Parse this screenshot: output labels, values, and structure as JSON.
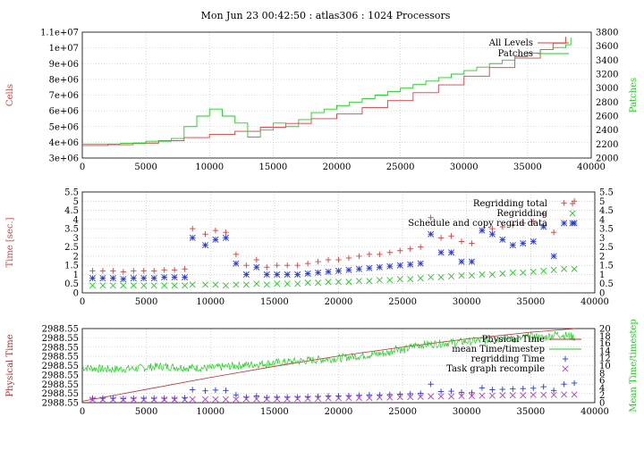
{
  "title": "Mon Jun 23 00:42:50 : atlas306 : 1024 Processors",
  "colors": {
    "red": "#d04040",
    "green": "#22cc22",
    "blue": "#2a3acc",
    "magenta": "#b040c0",
    "darkred": "#b03030"
  },
  "chart_data": [
    {
      "type": "line",
      "xlim": [
        0,
        40000
      ],
      "ylim_left": [
        3000000,
        11000000
      ],
      "ylim_right": [
        2000,
        3800
      ],
      "ylabel": "Cells",
      "ylabel_right": "Patches",
      "x_ticks": [
        "0",
        "5000",
        "10000",
        "15000",
        "20000",
        "25000",
        "30000",
        "35000",
        "40000"
      ],
      "y_ticks": [
        "3e+06",
        "4e+06",
        "5e+06",
        "6e+06",
        "7e+06",
        "8e+06",
        "9e+06",
        "1e+07",
        "1.1e+07"
      ],
      "y_ticks_right": [
        "2000",
        "2200",
        "2400",
        "2600",
        "2800",
        "3000",
        "3200",
        "3400",
        "3600",
        "3800"
      ],
      "legend_placement": "top-right",
      "series": [
        {
          "name": "All Levels",
          "axis": "left",
          "x": [
            0,
            2000,
            4000,
            6000,
            8000,
            10000,
            12000,
            14000,
            16000,
            18000,
            20000,
            22000,
            24000,
            26000,
            28000,
            30000,
            32000,
            34000,
            36000,
            37000,
            38000
          ],
          "y": [
            3800000,
            3850000,
            3950000,
            4100000,
            4300000,
            4500000,
            4700000,
            4950000,
            5200000,
            5500000,
            5800000,
            6200000,
            6650000,
            7150000,
            7650000,
            8200000,
            8750000,
            9350000,
            9900000,
            10300000,
            10700000
          ]
        },
        {
          "name": "Patches",
          "axis": "right",
          "x": [
            0,
            3000,
            5000,
            7000,
            8000,
            9000,
            10000,
            11000,
            12000,
            13000,
            14000,
            15000,
            16000,
            17000,
            18000,
            19000,
            20000,
            21000,
            22000,
            23000,
            24000,
            25000,
            26000,
            27000,
            28000,
            29000,
            30000,
            31000,
            32000,
            33000,
            34000,
            35000,
            36000,
            37000,
            38000,
            38400
          ],
          "y": [
            2200,
            2210,
            2240,
            2280,
            2450,
            2600,
            2700,
            2600,
            2500,
            2300,
            2400,
            2500,
            2450,
            2550,
            2650,
            2700,
            2750,
            2800,
            2850,
            2900,
            2950,
            3000,
            3050,
            3100,
            3150,
            3200,
            3250,
            3300,
            3350,
            3400,
            3450,
            3500,
            3550,
            3580,
            3620,
            3720
          ]
        }
      ]
    },
    {
      "type": "scatter",
      "xlim": [
        0,
        40000
      ],
      "ylim": [
        0,
        5.5
      ],
      "ylabel": "Time [sec.]",
      "x_ticks": [
        "0",
        "5000",
        "10000",
        "15000",
        "20000",
        "25000",
        "30000",
        "35000",
        "40000"
      ],
      "y_ticks": [
        "0",
        "0.5",
        "1",
        "1.5",
        "2",
        "2.5",
        "3",
        "3.5",
        "4",
        "4.5",
        "5",
        "5.5"
      ],
      "legend_placement": "top-right",
      "series": [
        {
          "name": "Regridding total",
          "marker": "+",
          "x": [
            800,
            1600,
            2400,
            3200,
            4000,
            4800,
            5600,
            6400,
            7200,
            8000,
            8600,
            9600,
            10400,
            11200,
            12000,
            12800,
            13600,
            14400,
            15200,
            16000,
            16800,
            17600,
            18400,
            19200,
            20000,
            20800,
            21600,
            22400,
            23200,
            24000,
            24800,
            25600,
            26400,
            27200,
            28000,
            28800,
            29600,
            30400,
            31200,
            32000,
            32800,
            33600,
            34400,
            35200,
            36000,
            36800,
            37600,
            38400
          ],
          "y": [
            1.2,
            1.2,
            1.2,
            1.15,
            1.2,
            1.2,
            1.2,
            1.25,
            1.25,
            1.3,
            3.5,
            3.2,
            3.4,
            3.3,
            2.1,
            1.5,
            1.8,
            1.4,
            1.5,
            1.5,
            1.5,
            1.6,
            1.7,
            1.8,
            1.8,
            1.9,
            2.0,
            2.1,
            2.1,
            2.2,
            2.3,
            2.4,
            2.5,
            4.1,
            3.0,
            3.1,
            2.8,
            2.7,
            3.4,
            3.5,
            3.6,
            3.7,
            3.8,
            3.9,
            4.3,
            3.3,
            4.9,
            5.0
          ]
        },
        {
          "name": "Regridding",
          "marker": "x",
          "x": [
            800,
            1600,
            2400,
            3200,
            4000,
            4800,
            5600,
            6400,
            7200,
            8000,
            8600,
            9600,
            10400,
            11200,
            12000,
            12800,
            13600,
            14400,
            15200,
            16000,
            16800,
            17600,
            18400,
            19200,
            20000,
            20800,
            21600,
            22400,
            23200,
            24000,
            24800,
            25600,
            26400,
            27200,
            28000,
            28800,
            29600,
            30400,
            31200,
            32000,
            32800,
            33600,
            34400,
            35200,
            36000,
            36800,
            37600,
            38400
          ],
          "y": [
            0.4,
            0.4,
            0.4,
            0.4,
            0.4,
            0.4,
            0.4,
            0.4,
            0.4,
            0.4,
            0.45,
            0.45,
            0.45,
            0.4,
            0.45,
            0.45,
            0.5,
            0.45,
            0.5,
            0.5,
            0.5,
            0.55,
            0.55,
            0.6,
            0.6,
            0.6,
            0.65,
            0.65,
            0.7,
            0.7,
            0.75,
            0.75,
            0.8,
            0.85,
            0.85,
            0.9,
            0.95,
            0.95,
            1.0,
            1.0,
            1.05,
            1.1,
            1.1,
            1.15,
            1.2,
            1.25,
            1.3,
            1.3
          ]
        },
        {
          "name": "Schedule and copy regrid data",
          "marker": "*",
          "x": [
            800,
            1600,
            2400,
            3200,
            4000,
            4800,
            5600,
            6400,
            7200,
            8000,
            8600,
            9600,
            10400,
            11200,
            12000,
            12800,
            13600,
            14400,
            15200,
            16000,
            16800,
            17600,
            18400,
            19200,
            20000,
            20800,
            21600,
            22400,
            23200,
            24000,
            24800,
            25600,
            26400,
            27200,
            28000,
            28800,
            29600,
            30400,
            31200,
            32000,
            32800,
            33600,
            34400,
            35200,
            36000,
            36800,
            37600,
            38400
          ],
          "y": [
            0.8,
            0.8,
            0.8,
            0.75,
            0.8,
            0.8,
            0.8,
            0.85,
            0.85,
            0.85,
            3.0,
            2.6,
            2.9,
            3.0,
            1.6,
            1.0,
            1.4,
            1.0,
            1.0,
            1.0,
            1.0,
            1.05,
            1.1,
            1.15,
            1.2,
            1.25,
            1.3,
            1.35,
            1.4,
            1.45,
            1.5,
            1.55,
            1.6,
            3.2,
            2.2,
            2.2,
            1.7,
            1.7,
            3.4,
            3.2,
            2.9,
            2.6,
            2.7,
            2.8,
            3.6,
            2.0,
            3.8,
            3.8
          ]
        }
      ]
    },
    {
      "type": "line",
      "xlim": [
        0,
        40000
      ],
      "ylabel": "Physical Time",
      "ylabel_right": "Mean Time/timestep",
      "ylim_right": [
        0,
        20
      ],
      "x_ticks": [
        "0",
        "5000",
        "10000",
        "15000",
        "20000",
        "25000",
        "30000",
        "35000",
        "40000"
      ],
      "y_ticks": [
        "2988.55",
        "2988.55",
        "2988.55",
        "2988.55",
        "2988.55",
        "2988.55",
        "2988.55",
        "2988.55",
        "2988.55"
      ],
      "y_ticks_right": [
        "0",
        "2",
        "4",
        "6",
        "8",
        "10",
        "12",
        "14",
        "16",
        "18",
        "20"
      ],
      "legend_placement": "top-right",
      "series": [
        {
          "name": "Physical Time",
          "axis": "left",
          "x": [
            0,
            5000,
            10000,
            15000,
            20000,
            25000,
            30000,
            35000,
            38500
          ],
          "y_fraction": [
            0.02,
            0.18,
            0.34,
            0.49,
            0.63,
            0.75,
            0.86,
            0.95,
            1.0
          ]
        },
        {
          "name": "mean Time/timestep",
          "axis": "right",
          "x": [
            0,
            2000,
            4000,
            6000,
            8000,
            10000,
            12000,
            14000,
            16000,
            18000,
            20000,
            22000,
            24000,
            24500,
            25000,
            26000,
            28000,
            30000,
            32000,
            33000,
            34000,
            35000,
            36000,
            37000,
            38000,
            38500
          ],
          "y": [
            9.5,
            9.0,
            9.2,
            9.8,
            9.5,
            9.3,
            10.0,
            10.5,
            11.0,
            11.5,
            12.0,
            12.8,
            13.5,
            15.0,
            14.0,
            15.5,
            16.0,
            16.5,
            17.0,
            17.5,
            17.0,
            18.0,
            17.5,
            18.5,
            18.0,
            17.5
          ]
        },
        {
          "name": "regridding Time",
          "marker": "+",
          "axis": "right",
          "x": [
            800,
            1600,
            2400,
            3200,
            4000,
            4800,
            5600,
            6400,
            7200,
            8000,
            8600,
            9600,
            10400,
            11200,
            12000,
            12800,
            13600,
            14400,
            15200,
            16000,
            16800,
            17600,
            18400,
            19200,
            20000,
            20800,
            21600,
            22400,
            23200,
            24000,
            24800,
            25600,
            26400,
            27200,
            28000,
            28800,
            29600,
            30400,
            31200,
            32000,
            32800,
            33600,
            34400,
            35200,
            36000,
            36800,
            37600,
            38400
          ],
          "y": [
            1.2,
            1.2,
            1.2,
            1.1,
            1.2,
            1.2,
            1.2,
            1.2,
            1.2,
            1.3,
            3.5,
            3.2,
            3.4,
            3.3,
            2.1,
            1.5,
            1.8,
            1.4,
            1.5,
            1.5,
            1.5,
            1.6,
            1.7,
            1.8,
            1.8,
            1.9,
            2.0,
            2.1,
            2.1,
            2.2,
            2.3,
            2.4,
            2.5,
            5.0,
            3.0,
            3.1,
            2.8,
            2.7,
            4.0,
            3.5,
            3.6,
            3.7,
            3.8,
            3.9,
            4.3,
            3.3,
            5.0,
            5.3
          ]
        },
        {
          "name": "Task graph recompile",
          "marker": "x",
          "axis": "right",
          "x": [
            800,
            1600,
            2400,
            3200,
            4000,
            4800,
            5600,
            6400,
            7200,
            8000,
            8600,
            9600,
            10400,
            11200,
            12000,
            12800,
            13600,
            14400,
            15200,
            16000,
            16800,
            17600,
            18400,
            19200,
            20000,
            20800,
            21600,
            22400,
            23200,
            24000,
            24800,
            25600,
            26400,
            27200,
            28000,
            28800,
            29600,
            30400,
            31200,
            32000,
            32800,
            33600,
            34400,
            35200,
            36000,
            36800,
            37600,
            38400
          ],
          "y": [
            0.8,
            0.8,
            0.8,
            0.8,
            0.8,
            0.8,
            0.8,
            0.8,
            0.8,
            0.8,
            0.9,
            0.9,
            0.9,
            0.9,
            0.9,
            1.0,
            1.0,
            1.0,
            1.0,
            1.0,
            1.1,
            1.1,
            1.1,
            1.2,
            1.2,
            1.3,
            1.3,
            1.3,
            1.4,
            1.4,
            1.5,
            1.5,
            1.6,
            1.7,
            1.7,
            1.7,
            1.8,
            1.8,
            1.9,
            1.9,
            2.0,
            2.0,
            2.0,
            2.1,
            2.1,
            2.1,
            2.2,
            2.2
          ]
        }
      ]
    }
  ]
}
